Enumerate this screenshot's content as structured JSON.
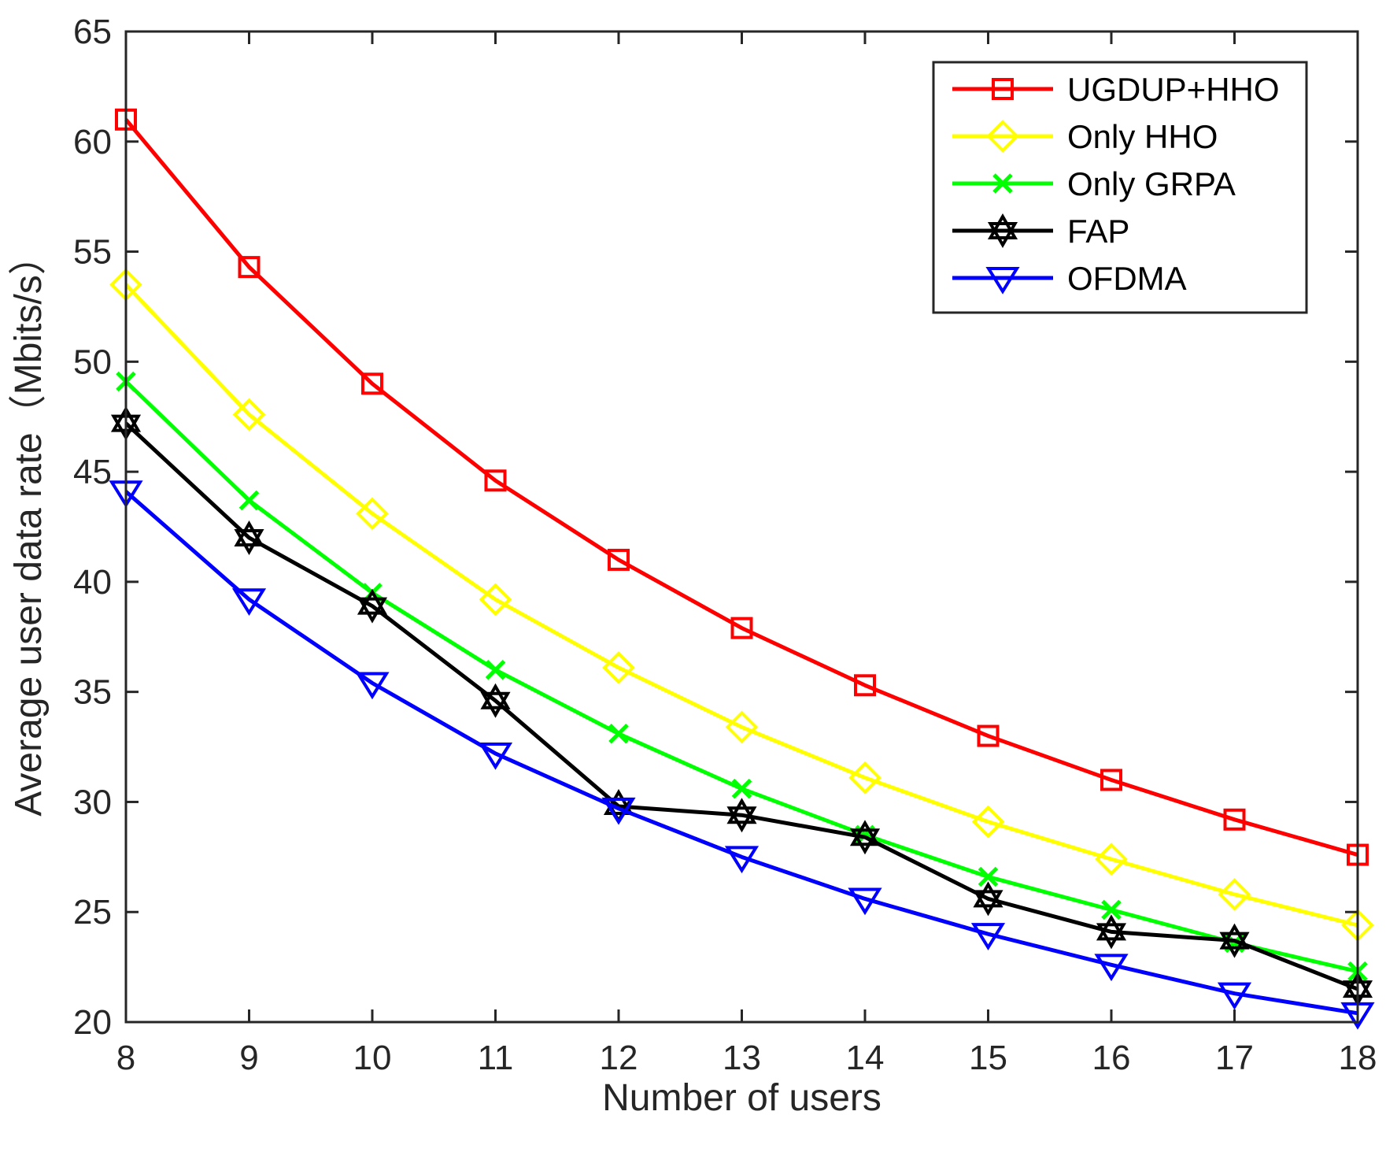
{
  "chart_data": {
    "type": "line",
    "title": "",
    "xlabel": "Number of users",
    "ylabel": "Average user data rate（Mbits/s）",
    "x": [
      8,
      9,
      10,
      11,
      12,
      13,
      14,
      15,
      16,
      17,
      18
    ],
    "xlim": [
      8,
      18
    ],
    "ylim": [
      20,
      65
    ],
    "xticks": [
      "8",
      "9",
      "10",
      "11",
      "12",
      "13",
      "14",
      "15",
      "16",
      "17",
      "18"
    ],
    "yticks": [
      "20",
      "25",
      "30",
      "35",
      "40",
      "45",
      "50",
      "55",
      "60",
      "65"
    ],
    "grid": false,
    "legend_position": "top-right",
    "series": [
      {
        "name": "UGDUP+HHO",
        "color": "#ff0000",
        "marker": "square",
        "values": [
          61.0,
          54.3,
          49.0,
          44.6,
          41.0,
          37.9,
          35.3,
          33.0,
          31.0,
          29.2,
          27.6
        ]
      },
      {
        "name": "Only HHO",
        "color": "#ffff00",
        "marker": "diamond",
        "values": [
          53.5,
          47.6,
          43.1,
          39.2,
          36.1,
          33.4,
          31.1,
          29.1,
          27.4,
          25.8,
          24.4
        ]
      },
      {
        "name": "Only GRPA",
        "color": "#00ff00",
        "marker": "x",
        "values": [
          49.1,
          43.7,
          39.5,
          36.0,
          33.1,
          30.6,
          28.5,
          26.6,
          25.1,
          23.6,
          22.3
        ]
      },
      {
        "name": "FAP",
        "color": "#000000",
        "marker": "hexagram",
        "values": [
          47.2,
          42.0,
          38.9,
          34.6,
          29.8,
          29.4,
          28.4,
          25.6,
          24.1,
          23.7,
          21.5
        ]
      },
      {
        "name": "OFDMA",
        "color": "#0000ff",
        "marker": "triangle-down",
        "values": [
          44.1,
          39.2,
          35.4,
          32.2,
          29.7,
          27.5,
          25.6,
          24.0,
          22.6,
          21.3,
          20.4
        ]
      }
    ]
  }
}
